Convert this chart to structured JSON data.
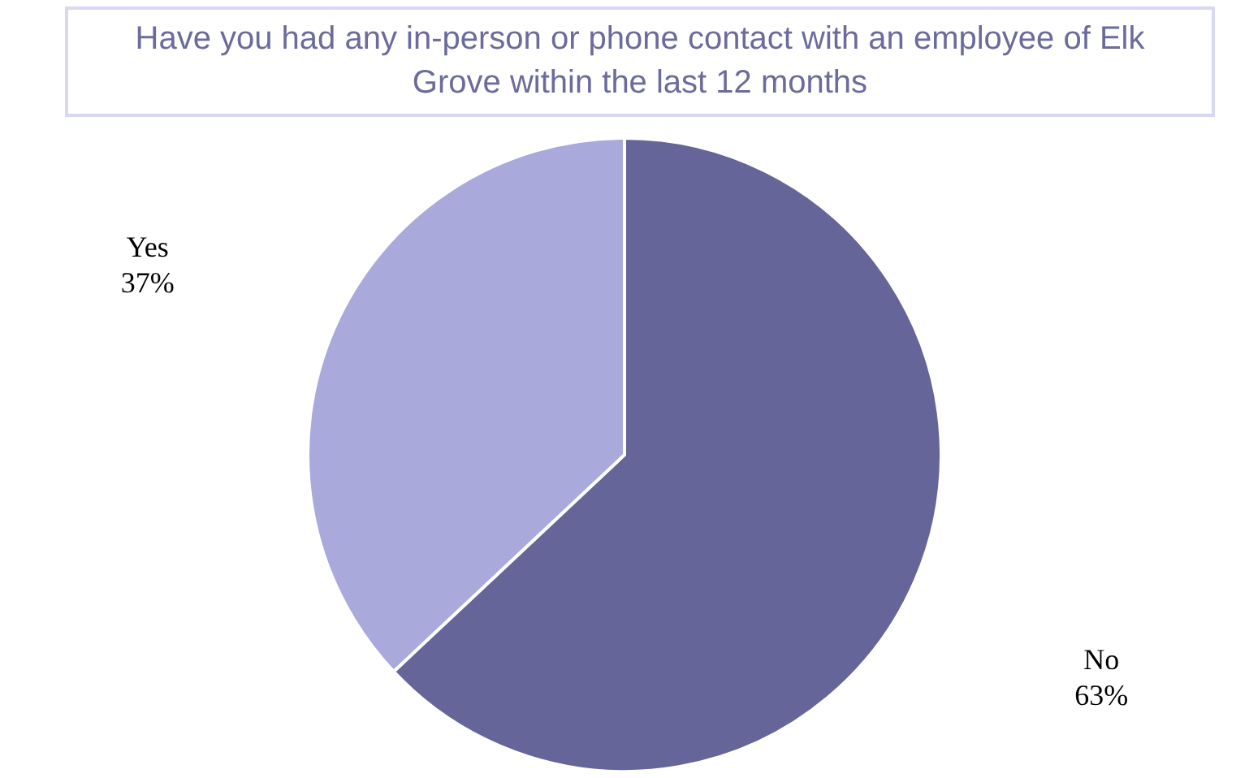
{
  "chart_data": {
    "type": "pie",
    "title": "Have you had any in-person or phone contact with an employee of Elk Grove within the last 12 months",
    "categories": [
      "No",
      "Yes"
    ],
    "values": [
      63,
      37
    ],
    "colors": [
      "#65659a",
      "#a9a9dc"
    ],
    "value_labels": [
      "63%",
      "37%"
    ]
  }
}
